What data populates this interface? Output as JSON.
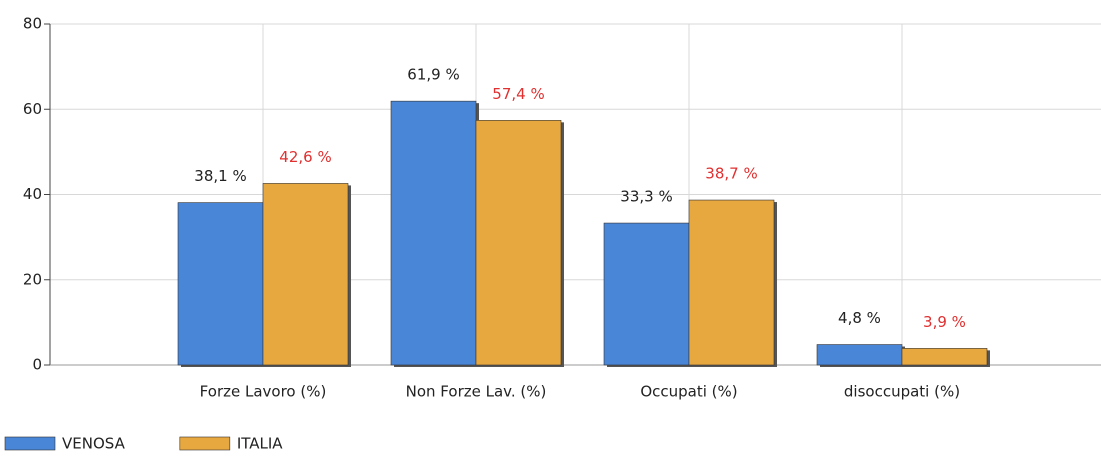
{
  "chart_data": {
    "type": "bar",
    "categories": [
      "Forze Lavoro (%)",
      "Non Forze Lav. (%)",
      "Occupati (%)",
      "disoccupati (%)"
    ],
    "series": [
      {
        "name": "VENOSA",
        "color": "#4a86d8",
        "label_color": "#222222",
        "values": [
          38.1,
          61.9,
          33.3,
          4.8
        ],
        "value_labels": [
          "38,1 %",
          "61,9 %",
          "33,3 %",
          "4,8 %"
        ]
      },
      {
        "name": "ITALIA",
        "color": "#e8a840",
        "label_color": "#e03030",
        "values": [
          42.6,
          57.4,
          38.7,
          3.9
        ],
        "value_labels": [
          "42,6 %",
          "57,4 %",
          "38,7 %",
          "3,9 %"
        ]
      }
    ],
    "ylim": [
      0,
      80
    ],
    "yticks": [
      0,
      20,
      40,
      60,
      80
    ],
    "grid": true,
    "legend": "bottom-left"
  }
}
